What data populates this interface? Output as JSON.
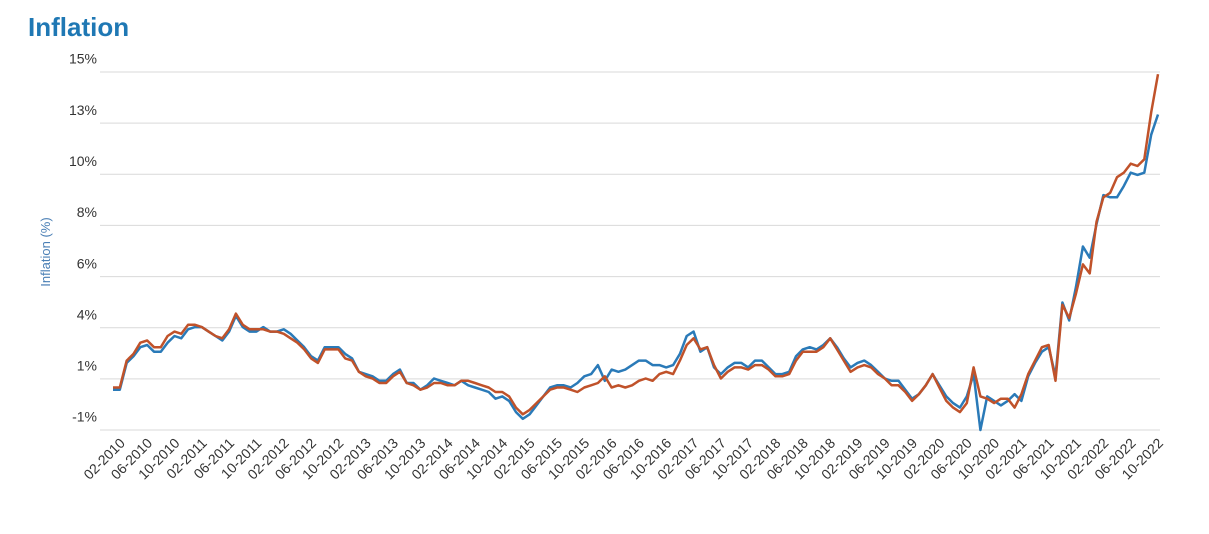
{
  "chart_data": {
    "type": "line",
    "title": "Inflation",
    "y_label": "Inflation (%)",
    "categories": [
      null,
      "02-2010",
      null,
      null,
      null,
      "06-2010",
      null,
      null,
      null,
      "10-2010",
      null,
      null,
      null,
      "02-2011",
      null,
      null,
      null,
      "06-2011",
      null,
      null,
      null,
      "10-2011",
      null,
      null,
      null,
      "02-2012",
      null,
      null,
      null,
      "06-2012",
      null,
      null,
      null,
      "10-2012",
      null,
      null,
      null,
      "02-2013",
      null,
      null,
      null,
      "06-2013",
      null,
      null,
      null,
      "10-2013",
      null,
      null,
      null,
      "02-2014",
      null,
      null,
      null,
      "06-2014",
      null,
      null,
      null,
      "10-2014",
      null,
      null,
      null,
      "02-2015",
      null,
      null,
      null,
      "06-2015",
      null,
      null,
      null,
      "10-2015",
      null,
      null,
      null,
      "02-2016",
      null,
      null,
      null,
      "06-2016",
      null,
      null,
      null,
      "10-2016",
      null,
      null,
      null,
      "02-2017",
      null,
      null,
      null,
      "06-2017",
      null,
      null,
      null,
      "10-2017",
      null,
      null,
      null,
      "02-2018",
      null,
      null,
      null,
      "06-2018",
      null,
      null,
      null,
      "10-2018",
      null,
      null,
      null,
      "02-2019",
      null,
      null,
      null,
      "06-2019",
      null,
      null,
      null,
      "10-2019",
      null,
      null,
      null,
      "02-2020",
      null,
      null,
      null,
      "06-2020",
      null,
      null,
      null,
      "10-2020",
      null,
      null,
      null,
      "02-2021",
      null,
      null,
      null,
      "06-2021",
      null,
      null,
      null,
      "10-2021",
      null,
      null,
      null,
      "02-2022",
      null,
      null,
      null,
      "06-2022",
      null,
      null,
      null,
      "10-2022"
    ],
    "series": [
      {
        "color": "#2a7ab8",
        "values": [
          0.8,
          0.8,
          2.0,
          2.3,
          2.7,
          2.8,
          2.5,
          2.5,
          2.9,
          3.2,
          3.1,
          3.5,
          3.6,
          3.6,
          3.4,
          3.2,
          3.0,
          3.4,
          4.1,
          3.6,
          3.4,
          3.4,
          3.6,
          3.4,
          3.4,
          3.5,
          3.3,
          3.0,
          2.7,
          2.3,
          2.1,
          2.7,
          2.7,
          2.7,
          2.4,
          2.2,
          1.6,
          1.5,
          1.4,
          1.2,
          1.2,
          1.5,
          1.7,
          1.1,
          1.1,
          0.8,
          1.0,
          1.3,
          1.2,
          1.1,
          1.0,
          1.2,
          1.0,
          0.9,
          0.8,
          0.7,
          0.4,
          0.5,
          0.3,
          -0.2,
          -0.5,
          -0.3,
          0.1,
          0.5,
          0.9,
          1.0,
          1.0,
          0.9,
          1.1,
          1.4,
          1.5,
          1.9,
          1.2,
          1.7,
          1.6,
          1.7,
          1.9,
          2.1,
          2.1,
          1.9,
          1.9,
          1.8,
          1.9,
          2.4,
          3.2,
          3.4,
          2.5,
          2.7,
          1.8,
          1.5,
          1.8,
          2.0,
          2.0,
          1.8,
          2.1,
          2.1,
          1.8,
          1.5,
          1.5,
          1.6,
          2.3,
          2.6,
          2.7,
          2.6,
          2.8,
          3.1,
          2.7,
          2.2,
          1.8,
          2.0,
          2.1,
          1.9,
          1.6,
          1.3,
          1.2,
          1.2,
          0.8,
          0.4,
          0.6,
          1.0,
          1.5,
          1.0,
          0.5,
          0.2,
          0.0,
          0.5,
          1.5,
          -1.0,
          0.5,
          0.3,
          0.1,
          0.3,
          0.6,
          0.3,
          1.4,
          2.0,
          2.5,
          2.7,
          1.4,
          4.7,
          3.9,
          5.4,
          7.2,
          6.7,
          8.2,
          9.5,
          9.4,
          9.4,
          9.9,
          10.5,
          10.4,
          10.5,
          12.2,
          13.1
        ]
      },
      {
        "color": "#c0522a",
        "values": [
          0.9,
          0.9,
          2.1,
          2.4,
          2.9,
          3.0,
          2.7,
          2.7,
          3.2,
          3.4,
          3.3,
          3.7,
          3.7,
          3.6,
          3.4,
          3.2,
          3.1,
          3.5,
          4.2,
          3.7,
          3.5,
          3.5,
          3.5,
          3.4,
          3.4,
          3.3,
          3.1,
          2.9,
          2.6,
          2.2,
          2.0,
          2.6,
          2.6,
          2.6,
          2.2,
          2.1,
          1.6,
          1.4,
          1.3,
          1.1,
          1.1,
          1.4,
          1.6,
          1.1,
          1.0,
          0.8,
          0.9,
          1.1,
          1.1,
          1.0,
          1.0,
          1.2,
          1.2,
          1.1,
          1.0,
          0.9,
          0.7,
          0.7,
          0.5,
          0.0,
          -0.3,
          -0.1,
          0.2,
          0.5,
          0.8,
          0.9,
          0.9,
          0.8,
          0.7,
          0.9,
          1.0,
          1.1,
          1.4,
          0.9,
          1.0,
          0.9,
          1.0,
          1.2,
          1.3,
          1.2,
          1.5,
          1.6,
          1.5,
          2.1,
          2.8,
          3.1,
          2.6,
          2.7,
          1.9,
          1.3,
          1.6,
          1.8,
          1.8,
          1.7,
          1.9,
          1.9,
          1.7,
          1.4,
          1.4,
          1.5,
          2.1,
          2.5,
          2.5,
          2.5,
          2.7,
          3.1,
          2.6,
          2.1,
          1.6,
          1.8,
          1.9,
          1.8,
          1.5,
          1.3,
          1.0,
          1.0,
          0.7,
          0.3,
          0.6,
          1.0,
          1.5,
          0.9,
          0.3,
          0.0,
          -0.2,
          0.2,
          1.8,
          0.5,
          0.4,
          0.2,
          0.4,
          0.4,
          0.0,
          0.6,
          1.5,
          2.1,
          2.7,
          2.8,
          1.2,
          4.6,
          4.0,
          5.1,
          6.4,
          6.0,
          8.3,
          9.4,
          9.6,
          10.3,
          10.5,
          10.9,
          10.8,
          11.1,
          13.2,
          14.9
        ]
      }
    ],
    "ylim": [
      -1,
      15
    ],
    "yticks": [
      {
        "value": -1,
        "label": "-1%"
      },
      {
        "value": 1.2857,
        "label": "1%"
      },
      {
        "value": 3.5714,
        "label": "4%"
      },
      {
        "value": 5.8571,
        "label": "6%"
      },
      {
        "value": 8.1429,
        "label": "8%"
      },
      {
        "value": 10.4286,
        "label": "10%"
      },
      {
        "value": 12.7143,
        "label": "13%"
      },
      {
        "value": 15,
        "label": "15%"
      }
    ],
    "grid": true
  }
}
